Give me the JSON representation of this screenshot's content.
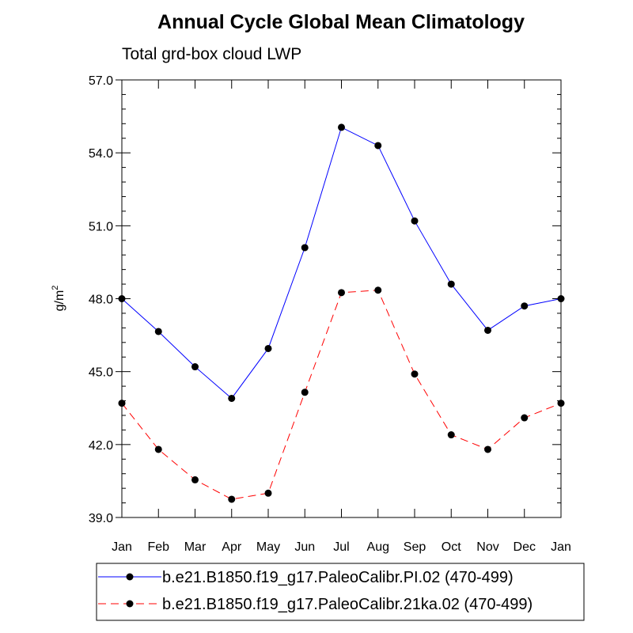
{
  "chart_data": {
    "type": "line",
    "title": "Annual Cycle Global Mean Climatology",
    "subtitle": "Total grd-box cloud LWP",
    "ylabel": "g/m",
    "ylabel_superscript": "2",
    "xlabel": "",
    "categories": [
      "Jan",
      "Feb",
      "Mar",
      "Apr",
      "May",
      "Jun",
      "Jul",
      "Aug",
      "Sep",
      "Oct",
      "Nov",
      "Dec",
      "Jan"
    ],
    "ylim": [
      39.0,
      57.0
    ],
    "yticks": [
      39.0,
      42.0,
      45.0,
      48.0,
      51.0,
      54.0,
      57.0
    ],
    "ytick_labels": [
      "39.0",
      "42.0",
      "45.0",
      "48.0",
      "51.0",
      "54.0",
      "57.0"
    ],
    "series": [
      {
        "name": "b.e21.B1850.f19_g17.PaleoCalibr.PI.02 (470-499)",
        "color": "#0000ff",
        "dash": "solid",
        "values": [
          48.0,
          46.65,
          45.2,
          43.9,
          45.95,
          50.1,
          55.05,
          54.3,
          51.2,
          48.6,
          46.7,
          47.7,
          48.0
        ]
      },
      {
        "name": "b.e21.B1850.f19_g17.PaleoCalibr.21ka.02 (470-499)",
        "color": "#ff0000",
        "dash": "dashed",
        "values": [
          43.7,
          41.8,
          40.55,
          39.75,
          40.0,
          44.15,
          48.25,
          48.35,
          44.9,
          42.4,
          41.8,
          43.1,
          43.7
        ]
      }
    ],
    "legend_position": "bottom"
  }
}
